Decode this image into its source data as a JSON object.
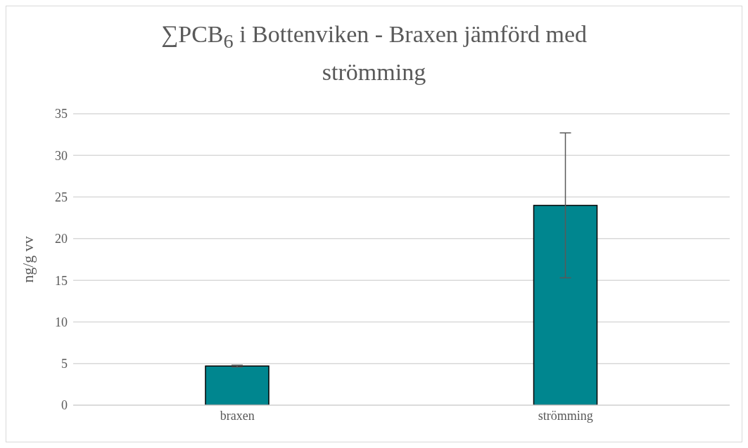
{
  "chart_data": {
    "type": "bar",
    "title": "∑PCB$_{6}$ i Bottenviken - Braxen jämförd med strömming",
    "ylabel": "ng/g vv",
    "categories": [
      "braxen",
      "strömming"
    ],
    "values": [
      4.7,
      24.0
    ],
    "errors": [
      0.1,
      8.7
    ],
    "color": "#00868f",
    "ylim": [
      0,
      35
    ],
    "yticks": [
      0,
      5,
      10,
      15,
      20,
      25,
      30,
      35
    ],
    "grid": "y"
  }
}
